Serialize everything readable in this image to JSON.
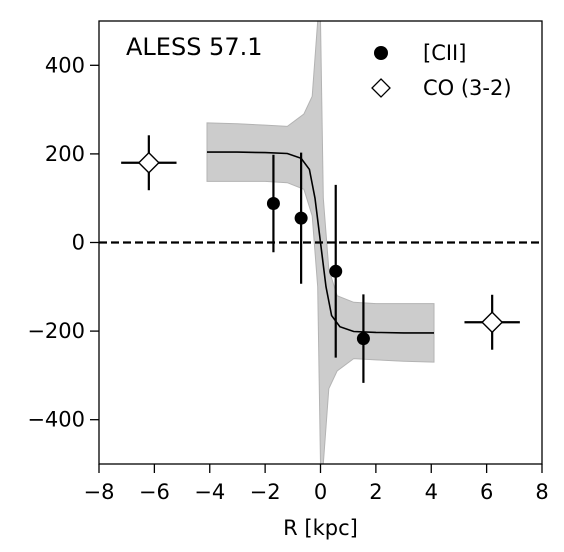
{
  "chart_data": {
    "type": "scatter",
    "annotation": "ALESS 57.1",
    "xlabel": "R [kpc]",
    "ylabel": "",
    "xlim": [
      -8,
      8
    ],
    "ylim": [
      -500,
      500
    ],
    "xticks": [
      -8,
      -6,
      -4,
      -2,
      0,
      2,
      4,
      6,
      8
    ],
    "yticks": [
      -400,
      -200,
      0,
      200,
      400
    ],
    "legend_position": "top-right",
    "reference_line": {
      "y": 0,
      "style": "dashed"
    },
    "series": [
      {
        "name": "[CII]",
        "marker": "filled-circle",
        "points": [
          {
            "x": -1.7,
            "y": 88,
            "yerr": 110
          },
          {
            "x": -0.7,
            "y": 55,
            "yerr": 148
          },
          {
            "x": 0.55,
            "y": -65,
            "yerr": 195
          },
          {
            "x": 1.55,
            "y": -217,
            "yerr": 100
          }
        ]
      },
      {
        "name": "CO (3-2)",
        "marker": "open-diamond",
        "points": [
          {
            "x": -6.2,
            "y": 180,
            "xerr": 1.0,
            "yerr": 62
          },
          {
            "x": 6.2,
            "y": -180,
            "xerr": 1.0,
            "yerr": 62
          }
        ]
      }
    ],
    "model_curve": {
      "x": [
        -4.1,
        -3,
        -2,
        -1.2,
        -0.7,
        -0.4,
        -0.2,
        0,
        0.2,
        0.4,
        0.7,
        1.2,
        2,
        3,
        4.1
      ],
      "y": [
        204,
        204,
        203,
        201,
        190,
        165,
        100,
        0,
        -100,
        -165,
        -190,
        -201,
        -203,
        -204,
        -204
      ]
    },
    "model_band": {
      "x": [
        -4.1,
        -3,
        -2,
        -1.2,
        -0.6,
        -0.3,
        -0.1,
        0,
        0.1,
        0.3,
        0.6,
        1.2,
        2,
        3,
        4.1
      ],
      "upper": [
        270,
        268,
        265,
        262,
        290,
        330,
        500,
        500,
        100,
        -60,
        -120,
        -135,
        -138,
        -138,
        -138
      ],
      "lower": [
        138,
        138,
        138,
        135,
        120,
        60,
        -100,
        -500,
        -500,
        -330,
        -290,
        -262,
        -265,
        -268,
        -270
      ]
    }
  }
}
